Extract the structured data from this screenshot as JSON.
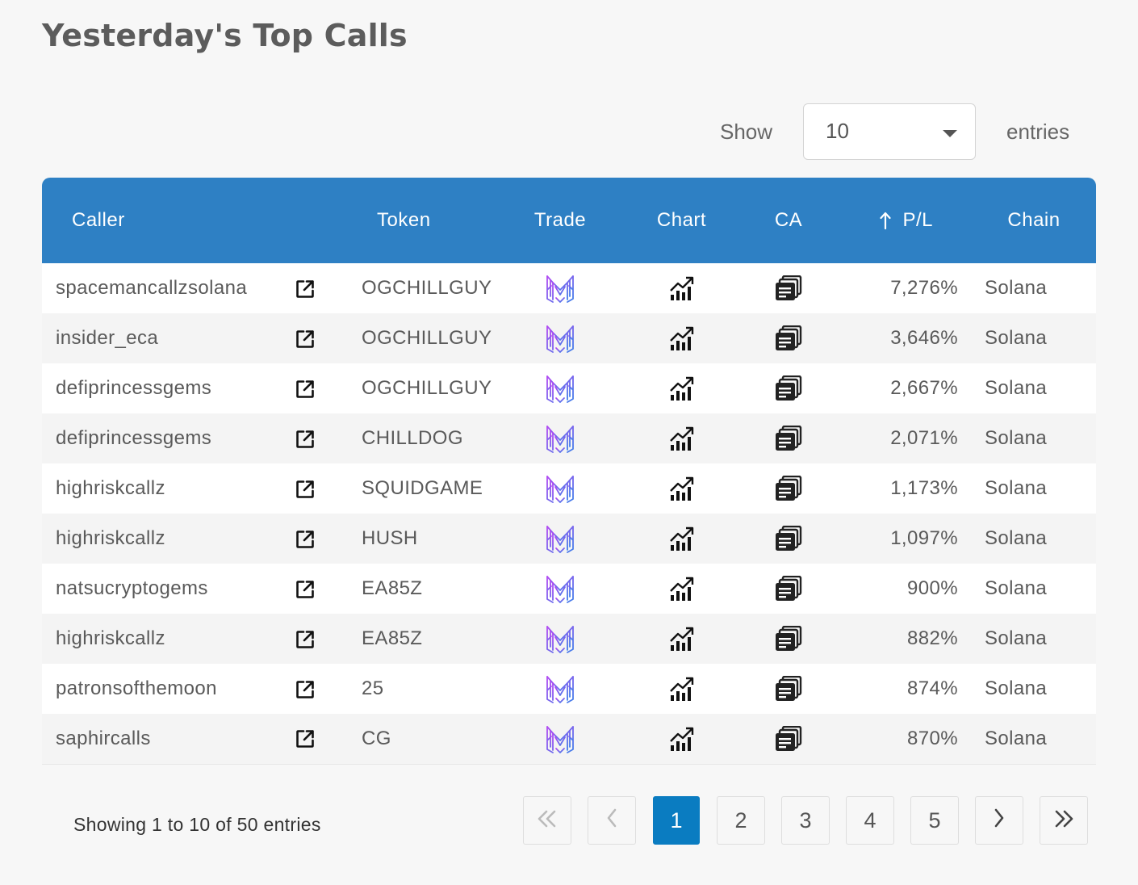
{
  "page": {
    "title": "Yesterday's Top Calls"
  },
  "length": {
    "label": "Show",
    "value": "10",
    "suffix": "entries"
  },
  "table": {
    "headers": {
      "caller": "Caller",
      "token": "Token",
      "trade": "Trade",
      "chart": "Chart",
      "ca": "CA",
      "pl": "P/L",
      "chain": "Chain"
    },
    "rows": [
      {
        "caller": "spacemancallzsolana",
        "token": "OGCHILLGUY",
        "pl": "7,276%",
        "chain": "Solana"
      },
      {
        "caller": "insider_eca",
        "token": "OGCHILLGUY",
        "pl": "3,646%",
        "chain": "Solana"
      },
      {
        "caller": "defiprincessgems",
        "token": "OGCHILLGUY",
        "pl": "2,667%",
        "chain": "Solana"
      },
      {
        "caller": "defiprincessgems",
        "token": "CHILLDOG",
        "pl": "2,071%",
        "chain": "Solana"
      },
      {
        "caller": "highriskcallz",
        "token": "SQUIDGAME",
        "pl": "1,173%",
        "chain": "Solana"
      },
      {
        "caller": "highriskcallz",
        "token": "HUSH",
        "pl": "1,097%",
        "chain": "Solana"
      },
      {
        "caller": "natsucryptogems",
        "token": "EA85Z",
        "pl": "900%",
        "chain": "Solana"
      },
      {
        "caller": "highriskcallz",
        "token": "EA85Z",
        "pl": "882%",
        "chain": "Solana"
      },
      {
        "caller": "patronsofthemoon",
        "token": "25",
        "pl": "874%",
        "chain": "Solana"
      },
      {
        "caller": "saphircalls",
        "token": "CG",
        "pl": "870%",
        "chain": "Solana"
      }
    ],
    "icons": {
      "external": "external-link-icon",
      "trade": "trade-logo-icon",
      "chart": "chart-trend-icon",
      "ca": "copy-address-icon",
      "sort": "sort-ascending-icon"
    }
  },
  "footer": {
    "info": "Showing 1 to 10 of 50 entries",
    "pages": [
      "1",
      "2",
      "3",
      "4",
      "5"
    ],
    "current_page": "1",
    "first_icon": "double-chevron-left-icon",
    "prev_icon": "chevron-left-icon",
    "next_icon": "chevron-right-icon",
    "last_icon": "double-chevron-right-icon"
  },
  "colors": {
    "header_bg": "#2e80c4",
    "active_page": "#0a7cc1",
    "trade_logo_gradient": [
      "#a24bf0",
      "#4a7bea"
    ]
  }
}
